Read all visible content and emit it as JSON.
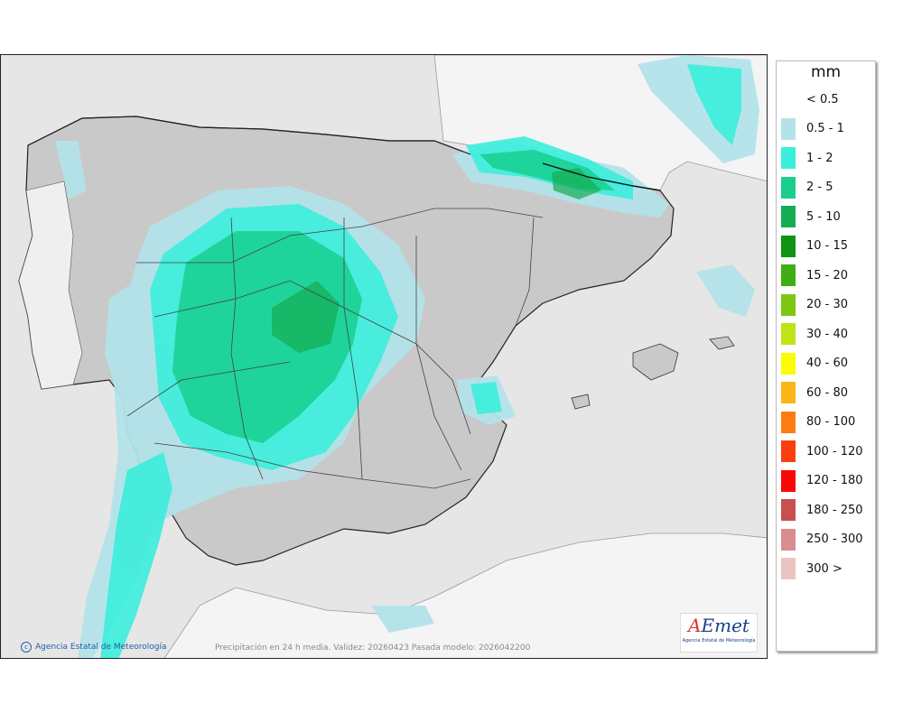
{
  "map": {
    "caption": "Precipitación en 24 h media. Validez: 20260423 Pasada modelo: 2026042200",
    "attribution": "Agencia Estatal de Meteorología",
    "logo": {
      "word_a": "A",
      "word_rest": "Emet",
      "sub": "Agencia Estatal de Meteorología"
    },
    "colors": {
      "sea": "#e6e6e6",
      "land_other": "#f4f4f4",
      "iberia": "#c9c9c9"
    }
  },
  "legend": {
    "title": "mm",
    "items": [
      {
        "label": "< 0.5",
        "color": "#ffffff"
      },
      {
        "label": "0.5 - 1",
        "color": "#b3e3e9"
      },
      {
        "label": "1 - 2",
        "color": "#3ceedc"
      },
      {
        "label": "2 - 5",
        "color": "#19cf8e"
      },
      {
        "label": "5 - 10",
        "color": "#14ad52"
      },
      {
        "label": "10 - 15",
        "color": "#0f9414"
      },
      {
        "label": "15 - 20",
        "color": "#3fae14"
      },
      {
        "label": "20 - 30",
        "color": "#7dc712"
      },
      {
        "label": "30 - 40",
        "color": "#bfe415"
      },
      {
        "label": "40 - 60",
        "color": "#fbfb05"
      },
      {
        "label": "60 - 80",
        "color": "#fbb515"
      },
      {
        "label": "80 - 100",
        "color": "#fb7d12"
      },
      {
        "label": "100 - 120",
        "color": "#fb3e10"
      },
      {
        "label": "120 - 180",
        "color": "#fb0707"
      },
      {
        "label": "180 - 250",
        "color": "#c85050"
      },
      {
        "label": "250 - 300",
        "color": "#d98d8d"
      },
      {
        "label": "300 >",
        "color": "#ecc3c3"
      }
    ]
  }
}
